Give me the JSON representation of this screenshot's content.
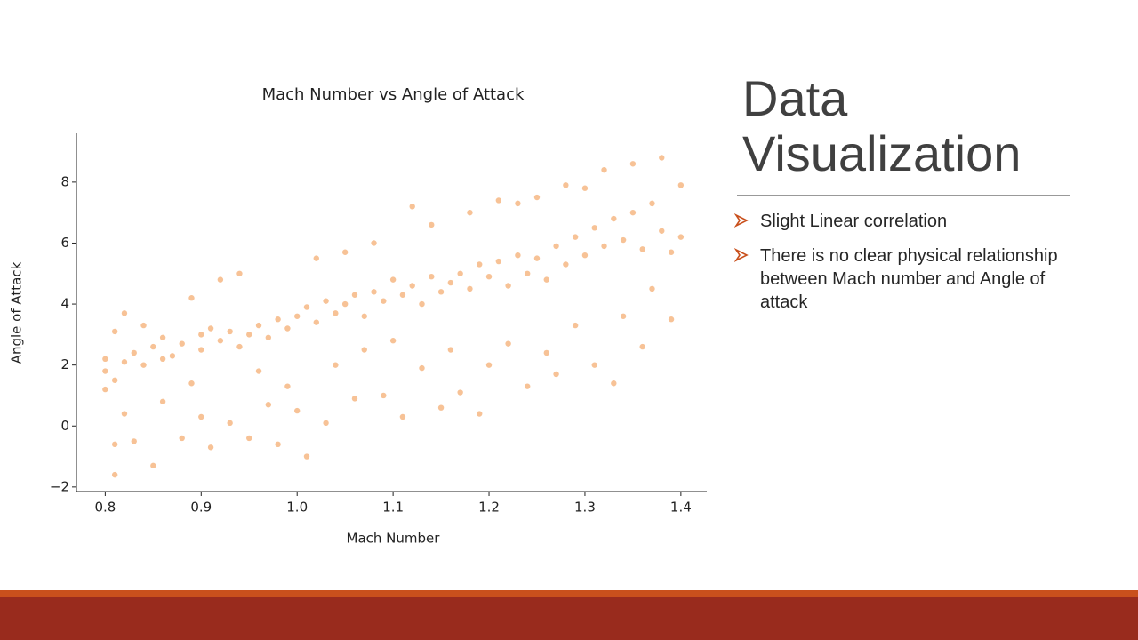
{
  "slide": {
    "title": "Data Visualization",
    "bullets": [
      "Slight Linear correlation",
      "There is no clear physical relationship between Mach number and Angle of attack"
    ]
  },
  "chart_data": {
    "type": "scatter",
    "title": "Mach Number vs Angle of Attack",
    "x_label": "Mach Number",
    "y_label": "Angle of Attack",
    "xlim": [
      0.77,
      1.427
    ],
    "ylim": [
      -2.15,
      9.6
    ],
    "xticks": [
      0.8,
      0.9,
      {
        "value": 1,
        "label": "1.0"
      },
      1.1,
      1.2,
      1.3,
      1.4
    ],
    "yticks": [
      {
        "value": -2,
        "label": "−2"
      },
      0,
      2,
      4,
      6,
      8
    ],
    "grid": false,
    "series": [
      {
        "color": "#f0862e",
        "x": [
          0.8,
          0.8,
          0.8,
          0.81,
          0.81,
          0.81,
          0.81,
          0.82,
          0.82,
          0.82,
          0.83,
          0.83,
          0.84,
          0.84,
          0.85,
          0.85,
          0.86,
          0.86,
          0.86,
          0.87,
          0.88,
          0.88,
          0.89,
          0.89,
          0.9,
          0.9,
          0.9,
          0.91,
          0.91,
          0.92,
          0.92,
          0.93,
          0.93,
          0.94,
          0.94,
          0.95,
          0.95,
          0.96,
          0.96,
          0.97,
          0.97,
          0.98,
          0.98,
          0.99,
          0.99,
          1.0,
          1.0,
          1.01,
          1.01,
          1.02,
          1.02,
          1.03,
          1.03,
          1.04,
          1.04,
          1.05,
          1.05,
          1.06,
          1.06,
          1.07,
          1.07,
          1.08,
          1.08,
          1.09,
          1.09,
          1.1,
          1.1,
          1.11,
          1.11,
          1.12,
          1.12,
          1.13,
          1.13,
          1.14,
          1.14,
          1.15,
          1.15,
          1.16,
          1.16,
          1.17,
          1.17,
          1.18,
          1.18,
          1.19,
          1.19,
          1.2,
          1.2,
          1.21,
          1.21,
          1.22,
          1.22,
          1.23,
          1.23,
          1.24,
          1.24,
          1.25,
          1.25,
          1.26,
          1.26,
          1.27,
          1.27,
          1.28,
          1.28,
          1.29,
          1.29,
          1.3,
          1.3,
          1.31,
          1.31,
          1.32,
          1.32,
          1.33,
          1.33,
          1.34,
          1.34,
          1.35,
          1.35,
          1.36,
          1.36,
          1.37,
          1.37,
          1.38,
          1.38,
          1.39,
          1.39,
          1.4,
          1.4
        ],
        "y": [
          1.8,
          1.2,
          2.2,
          1.5,
          -0.6,
          3.1,
          -1.6,
          2.1,
          3.7,
          0.4,
          2.4,
          -0.5,
          2.0,
          3.3,
          2.6,
          -1.3,
          2.9,
          0.8,
          2.2,
          2.3,
          2.7,
          -0.4,
          4.2,
          1.4,
          3.0,
          0.3,
          2.5,
          3.2,
          -0.7,
          2.8,
          4.8,
          3.1,
          0.1,
          2.6,
          5.0,
          3.0,
          -0.4,
          3.3,
          1.8,
          2.9,
          0.7,
          3.5,
          -0.6,
          3.2,
          1.3,
          3.6,
          0.5,
          3.9,
          -1.0,
          3.4,
          5.5,
          4.1,
          0.1,
          3.7,
          2.0,
          4.0,
          5.7,
          4.3,
          0.9,
          3.6,
          2.5,
          4.4,
          6.0,
          4.1,
          1.0,
          4.8,
          2.8,
          4.3,
          0.3,
          4.6,
          7.2,
          4.0,
          1.9,
          4.9,
          6.6,
          4.4,
          0.6,
          4.7,
          2.5,
          5.0,
          1.1,
          4.5,
          7.0,
          5.3,
          0.4,
          4.9,
          2.0,
          5.4,
          7.4,
          4.6,
          2.7,
          5.6,
          7.3,
          5.0,
          1.3,
          5.5,
          7.5,
          4.8,
          2.4,
          5.9,
          1.7,
          5.3,
          7.9,
          6.2,
          3.3,
          5.6,
          7.8,
          6.5,
          2.0,
          5.9,
          8.4,
          6.8,
          1.4,
          6.1,
          3.6,
          7.0,
          8.6,
          5.8,
          2.6,
          7.3,
          4.5,
          6.4,
          8.8,
          5.7,
          3.5,
          6.2,
          7.9
        ]
      }
    ]
  }
}
